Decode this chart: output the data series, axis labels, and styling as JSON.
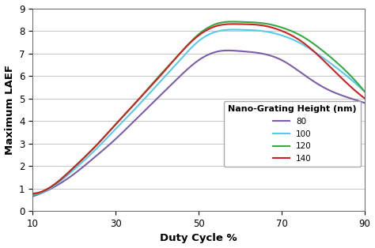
{
  "title": "",
  "xlabel": "Duty Cycle %",
  "ylabel": "Maximum LAEF",
  "xlim": [
    10,
    90
  ],
  "ylim": [
    0,
    9
  ],
  "xticks": [
    10,
    30,
    50,
    70,
    90
  ],
  "yticks": [
    0,
    1,
    2,
    3,
    4,
    5,
    6,
    7,
    8,
    9
  ],
  "legend_title": "Nano-Grating Height (nm)",
  "series": [
    {
      "label": "80",
      "color": "#7B5EA7",
      "x": [
        10,
        15,
        20,
        25,
        30,
        35,
        40,
        45,
        50,
        55,
        60,
        65,
        70,
        75,
        80,
        85,
        90
      ],
      "y": [
        0.65,
        1.05,
        1.65,
        2.4,
        3.2,
        4.1,
        5.0,
        5.9,
        6.7,
        7.1,
        7.1,
        7.0,
        6.7,
        6.1,
        5.5,
        5.1,
        4.8
      ]
    },
    {
      "label": "100",
      "color": "#55CCEE",
      "x": [
        10,
        15,
        20,
        25,
        30,
        35,
        40,
        45,
        50,
        55,
        60,
        65,
        70,
        75,
        80,
        85,
        90
      ],
      "y": [
        0.72,
        1.1,
        1.85,
        2.7,
        3.65,
        4.6,
        5.6,
        6.6,
        7.55,
        8.0,
        8.05,
        8.0,
        7.8,
        7.4,
        6.8,
        6.1,
        5.3
      ]
    },
    {
      "label": "120",
      "color": "#33AA44",
      "x": [
        10,
        15,
        20,
        25,
        30,
        35,
        40,
        45,
        50,
        55,
        60,
        65,
        70,
        75,
        80,
        85,
        90
      ],
      "y": [
        0.75,
        1.15,
        1.95,
        2.85,
        3.85,
        4.85,
        5.9,
        6.9,
        7.85,
        8.35,
        8.4,
        8.35,
        8.15,
        7.75,
        7.1,
        6.3,
        5.3
      ]
    },
    {
      "label": "140",
      "color": "#CC2222",
      "x": [
        10,
        15,
        20,
        25,
        30,
        35,
        40,
        45,
        50,
        55,
        60,
        65,
        70,
        75,
        80,
        85,
        90
      ],
      "y": [
        0.78,
        1.15,
        1.95,
        2.85,
        3.85,
        4.85,
        5.85,
        6.9,
        7.8,
        8.25,
        8.3,
        8.25,
        8.0,
        7.5,
        6.7,
        5.8,
        5.0
      ]
    }
  ],
  "background_color": "#ffffff",
  "grid_color": "#bbbbbb",
  "legend_fontsize": 7.5,
  "axis_fontsize": 9.5,
  "tick_fontsize": 8.5,
  "line_width": 1.5
}
